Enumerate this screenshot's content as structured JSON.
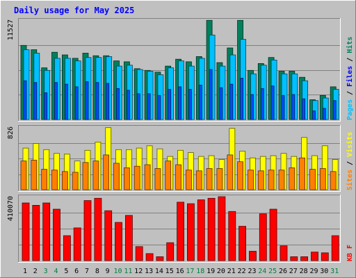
{
  "title": "Daily usage for May 2025",
  "colors": {
    "background": "#C0C0C0",
    "title": "#0000FF",
    "hits": "#00805C",
    "files": "#00C0FF",
    "pages": "#00C0FF",
    "visits": "#FFFF00",
    "sites": "#FF8000",
    "kbytes": "#FF0000",
    "weekend_label": "#008040",
    "weekday_label": "#000000"
  },
  "chart_data": [
    {
      "type": "bar",
      "panel": "hits-files-pages",
      "title": "Daily usage for May 2025",
      "ylabel_parts": [
        {
          "text": "Pages",
          "color": "#00C0FF"
        },
        {
          "text": " / ",
          "color": "#000000"
        },
        {
          "text": "Files",
          "color": "#0000FF"
        },
        {
          "text": " / ",
          "color": "#000000"
        },
        {
          "text": "Hits",
          "color": "#00805C"
        }
      ],
      "max_label": "11527",
      "ylim": [
        0,
        11527
      ],
      "categories": [
        "1",
        "2",
        "3",
        "4",
        "5",
        "6",
        "7",
        "8",
        "9",
        "10",
        "11",
        "12",
        "13",
        "14",
        "15",
        "16",
        "17",
        "18",
        "19",
        "20",
        "21",
        "22",
        "23",
        "24",
        "25",
        "26",
        "27",
        "28",
        "29",
        "30",
        "31"
      ],
      "series": [
        {
          "name": "Hits",
          "values": [
            8600,
            8100,
            6000,
            7800,
            7500,
            7100,
            7700,
            7400,
            7400,
            6800,
            6700,
            5900,
            5700,
            5500,
            6200,
            7000,
            6700,
            7300,
            11500,
            6600,
            8300,
            11500,
            5700,
            6500,
            7200,
            5600,
            5600,
            4900,
            2300,
            2800,
            3800
          ]
        },
        {
          "name": "Files",
          "values": [
            8100,
            7700,
            5700,
            7100,
            7100,
            6800,
            7200,
            7200,
            7300,
            6200,
            6300,
            5800,
            5600,
            5200,
            6000,
            6800,
            6200,
            7100,
            9800,
            6200,
            7500,
            9300,
            5300,
            6300,
            6900,
            5300,
            5300,
            4500,
            2200,
            2500,
            3500
          ]
        },
        {
          "name": "Pages",
          "values": [
            4500,
            4300,
            3100,
            4300,
            4100,
            3800,
            4400,
            4300,
            4200,
            3600,
            3400,
            3000,
            3000,
            2800,
            3500,
            3800,
            3500,
            4000,
            5800,
            3700,
            4100,
            4800,
            2900,
            3600,
            3900,
            2800,
            2900,
            2400,
            1000,
            1300,
            2200
          ]
        }
      ]
    },
    {
      "type": "bar",
      "panel": "visits-sites",
      "ylabel_parts": [
        {
          "text": "Sites",
          "color": "#FF8000"
        },
        {
          "text": " / ",
          "color": "#000000"
        },
        {
          "text": "Visits",
          "color": "#FFFF00"
        }
      ],
      "max_label": "826",
      "ylim": [
        0,
        826
      ],
      "categories": [
        "1",
        "2",
        "3",
        "4",
        "5",
        "6",
        "7",
        "8",
        "9",
        "10",
        "11",
        "12",
        "13",
        "14",
        "15",
        "16",
        "17",
        "18",
        "19",
        "20",
        "21",
        "22",
        "23",
        "24",
        "25",
        "26",
        "27",
        "28",
        "29",
        "30",
        "31"
      ],
      "series": [
        {
          "name": "Visits",
          "values": [
            550,
            610,
            530,
            480,
            470,
            380,
            520,
            630,
            820,
            530,
            530,
            550,
            580,
            540,
            440,
            520,
            490,
            440,
            450,
            400,
            810,
            510,
            420,
            440,
            450,
            480,
            440,
            690,
            450,
            580,
            400
          ]
        },
        {
          "name": "Sites",
          "values": [
            380,
            390,
            270,
            260,
            240,
            230,
            360,
            380,
            460,
            350,
            290,
            310,
            330,
            280,
            380,
            330,
            260,
            250,
            280,
            280,
            460,
            370,
            260,
            250,
            260,
            260,
            290,
            420,
            270,
            280,
            240
          ]
        }
      ]
    },
    {
      "type": "bar",
      "panel": "kbytes",
      "ylabel_parts": [
        {
          "text": "KB F",
          "color": "#FF0000"
        }
      ],
      "max_label": "410070",
      "ylim": [
        0,
        410070
      ],
      "categories": [
        "1",
        "2",
        "3",
        "4",
        "5",
        "6",
        "7",
        "8",
        "9",
        "10",
        "11",
        "12",
        "13",
        "14",
        "15",
        "16",
        "17",
        "18",
        "19",
        "20",
        "21",
        "22",
        "23",
        "24",
        "25",
        "26",
        "27",
        "28",
        "29",
        "30",
        "31"
      ],
      "series": [
        {
          "name": "KB F",
          "values": [
            370000,
            355000,
            370000,
            330000,
            160000,
            210000,
            385000,
            400000,
            320000,
            245000,
            290000,
            90000,
            45000,
            25000,
            115000,
            375000,
            365000,
            390000,
            400000,
            410000,
            315000,
            220000,
            60000,
            300000,
            330000,
            95000,
            25000,
            25000,
            55000,
            50000,
            160000
          ]
        }
      ]
    }
  ]
}
